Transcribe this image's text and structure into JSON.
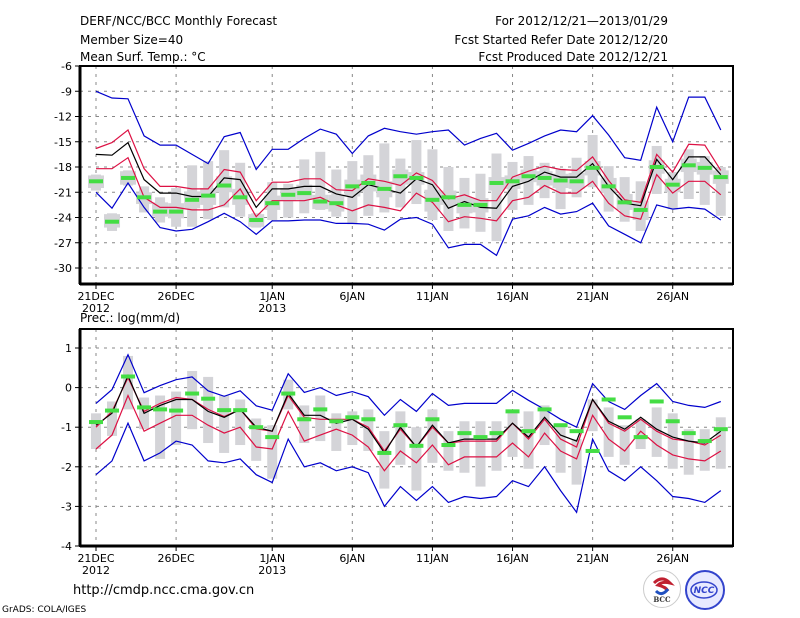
{
  "header": {
    "title": "DERF/NCC/BCC Monthly Forecast",
    "member_size": "Member Size=40",
    "variable": "Mean Surf. Temp.: °C",
    "period": "For 2012/12/21—2013/01/29",
    "started": "Fcst Started Refer Date 2012/12/20",
    "produced": "Fcst Produced Date 2012/12/21"
  },
  "footer": {
    "url": "http://cmdp.ncc.cma.gov.cn",
    "credit": "GrADS: COLA/IGES",
    "logo_left": "BCC",
    "logo_right": "NCC"
  },
  "colors": {
    "max_min": "#0000cc",
    "spread": "#dd1144",
    "mean": "#000000",
    "marker": "#44dd44",
    "bar": "#d4d4d8",
    "grid": "#888888"
  },
  "chart_data": [
    {
      "type": "line",
      "title": "Mean Surf. Temp.: °C",
      "ylabel": "°C",
      "ylim": [
        -32,
        -6
      ],
      "yticks": [
        -6,
        -9,
        -12,
        -15,
        -18,
        -21,
        -24,
        -27,
        -30
      ],
      "ytick_labels": [
        "-6",
        "-9",
        "-12",
        "-15",
        "-18",
        "-21",
        "-24",
        "-27",
        "-30"
      ],
      "xticks": [
        {
          "day": 0,
          "label": "21DEC",
          "sub": "2012"
        },
        {
          "day": 5,
          "label": "26DEC",
          "sub": ""
        },
        {
          "day": 11,
          "label": "1JAN",
          "sub": "2013"
        },
        {
          "day": 16,
          "label": "6JAN",
          "sub": ""
        },
        {
          "day": 21,
          "label": "11JAN",
          "sub": ""
        },
        {
          "day": 26,
          "label": "16JAN",
          "sub": ""
        },
        {
          "day": 31,
          "label": "21JAN",
          "sub": ""
        },
        {
          "day": 36,
          "label": "26JAN",
          "sub": ""
        }
      ],
      "grid": true,
      "series": [
        {
          "name": "max",
          "values": [
            -9.0,
            -9.8,
            -9.9,
            -14.3,
            -15.4,
            -15.4,
            -16.5,
            -17.6,
            -14.4,
            -13.9,
            -18.3,
            -15.9,
            -15.9,
            -14.6,
            -13.5,
            -14.1,
            -16.4,
            -14.3,
            -13.4,
            -13.8,
            -14.1,
            -13.8,
            -13.6,
            -15.4,
            -14.6,
            -14.0,
            -16.0,
            -15.2,
            -14.3,
            -13.6,
            -13.8,
            -11.9,
            -14.2,
            -16.9,
            -17.2,
            -10.9,
            -15.0,
            -9.7,
            -9.7,
            -13.6
          ]
        },
        {
          "name": "upper",
          "values": [
            -15.8,
            -15.1,
            -13.6,
            -18.2,
            -20.3,
            -20.3,
            -20.6,
            -20.6,
            -18.3,
            -18.6,
            -22.0,
            -19.8,
            -19.8,
            -19.4,
            -19.4,
            -20.7,
            -20.8,
            -19.4,
            -19.7,
            -20.2,
            -18.7,
            -19.6,
            -21.8,
            -21.3,
            -22.0,
            -22.0,
            -19.2,
            -18.5,
            -17.9,
            -18.3,
            -18.4,
            -16.8,
            -19.6,
            -21.9,
            -22.2,
            -16.5,
            -18.6,
            -15.3,
            -15.4,
            -18.4
          ]
        },
        {
          "name": "mean",
          "values": [
            -16.5,
            -16.6,
            -15.1,
            -19.5,
            -21.1,
            -21.1,
            -21.5,
            -21.5,
            -19.3,
            -19.5,
            -22.8,
            -20.6,
            -20.6,
            -20.3,
            -20.3,
            -21.2,
            -21.6,
            -20.1,
            -20.6,
            -21.1,
            -19.4,
            -20.1,
            -22.9,
            -22.1,
            -22.8,
            -22.9,
            -20.3,
            -19.7,
            -18.6,
            -19.2,
            -19.2,
            -17.6,
            -20.3,
            -22.3,
            -22.6,
            -17.1,
            -19.5,
            -16.8,
            -16.8,
            -18.9
          ]
        },
        {
          "name": "lower",
          "values": [
            -18.2,
            -18.2,
            -16.9,
            -21.6,
            -22.8,
            -22.8,
            -23.1,
            -23.1,
            -22.5,
            -20.6,
            -23.9,
            -22.0,
            -22.0,
            -22.0,
            -21.6,
            -22.5,
            -23.2,
            -22.5,
            -22.8,
            -23.2,
            -21.1,
            -22.2,
            -24.5,
            -23.9,
            -24.1,
            -24.4,
            -22.0,
            -21.6,
            -20.2,
            -21.1,
            -21.1,
            -19.7,
            -22.3,
            -23.8,
            -24.2,
            -18.9,
            -21.1,
            -19.7,
            -19.7,
            -21.3
          ]
        },
        {
          "name": "min",
          "values": [
            -21.0,
            -22.9,
            -19.9,
            -22.8,
            -25.2,
            -25.6,
            -25.4,
            -24.5,
            -23.5,
            -24.5,
            -26.0,
            -24.4,
            -24.4,
            -24.3,
            -24.3,
            -24.7,
            -24.7,
            -24.8,
            -25.5,
            -24.2,
            -24.0,
            -24.8,
            -27.6,
            -27.2,
            -27.2,
            -28.5,
            -24.2,
            -23.8,
            -22.8,
            -23.6,
            -23.3,
            -22.3,
            -25.0,
            -26.0,
            -27.0,
            -22.5,
            -23.0,
            -22.8,
            -23.0,
            -24.3
          ]
        },
        {
          "name": "marker",
          "values": [
            -19.7,
            -24.5,
            -19.3,
            -21.6,
            -23.3,
            -23.3,
            -21.9,
            -21.4,
            -20.2,
            -21.6,
            -24.3,
            -22.3,
            -21.3,
            -21.1,
            -22.1,
            -22.3,
            -20.3,
            -19.9,
            -20.6,
            -19.1,
            -19.3,
            -21.9,
            -21.6,
            -22.5,
            -22.5,
            -19.9,
            -19.7,
            -19.1,
            -19.3,
            -19.6,
            -19.7,
            -18.1,
            -20.3,
            -22.2,
            -23.1,
            -18.0,
            -20.1,
            -17.8,
            -18.1,
            -19.2
          ]
        },
        {
          "name": "bar_top",
          "values": [
            -18.9,
            -23.5,
            -18.4,
            -20.3,
            -21.6,
            -20.5,
            -17.8,
            -17.3,
            -16.0,
            -17.5,
            -23.5,
            -19.8,
            -20.0,
            -17.1,
            -16.2,
            -18.3,
            -17.3,
            -16.6,
            -15.2,
            -17.0,
            -14.8,
            -15.9,
            -18.0,
            -19.3,
            -18.8,
            -16.4,
            -17.4,
            -16.7,
            -17.5,
            -18.2,
            -16.9,
            -14.2,
            -17.9,
            -19.2,
            -19.7,
            -15.5,
            -18.6,
            -15.9,
            -16.7,
            -18.0
          ]
        },
        {
          "name": "bar_bottom",
          "values": [
            -20.8,
            -25.6,
            -20.2,
            -23.4,
            -24.6,
            -25.1,
            -25.1,
            -24.2,
            -22.8,
            -23.9,
            -25.2,
            -24.3,
            -24.0,
            -23.5,
            -23.1,
            -23.9,
            -24.8,
            -23.8,
            -23.4,
            -22.8,
            -22.4,
            -24.3,
            -25.6,
            -25.3,
            -25.7,
            -26.8,
            -23.1,
            -22.5,
            -21.7,
            -23.0,
            -21.6,
            -20.4,
            -23.3,
            -24.5,
            -25.6,
            -21.2,
            -23.0,
            -21.8,
            -22.5,
            -23.8
          ]
        },
        {
          "name": "bar_inner_top",
          "values": [
            -19.0,
            -23.6,
            -18.5,
            -21.0,
            -22.2,
            -22.3,
            -20.9,
            -20.5,
            -19.1,
            -20.6,
            -23.6,
            -21.4,
            -20.5,
            -20.1,
            -21.3,
            -21.3,
            -19.5,
            -18.9,
            -19.7,
            -18.3,
            -18.6,
            -20.7,
            -20.8,
            -21.6,
            -21.7,
            -19.2,
            -19.0,
            -18.3,
            -18.5,
            -18.8,
            -18.7,
            -17.3,
            -19.3,
            -21.2,
            -22.0,
            -17.2,
            -19.4,
            -17.0,
            -17.4,
            -18.4
          ]
        },
        {
          "name": "bar_inner_bottom",
          "values": [
            -20.5,
            -25.2,
            -20.1,
            -22.4,
            -23.9,
            -24.1,
            -22.9,
            -22.5,
            -21.0,
            -22.5,
            -25.1,
            -23.1,
            -22.0,
            -21.9,
            -23.0,
            -23.3,
            -21.5,
            -20.9,
            -21.6,
            -20.1,
            -20.1,
            -23.3,
            -22.5,
            -23.5,
            -23.4,
            -20.8,
            -20.6,
            -19.8,
            -20.2,
            -20.5,
            -20.6,
            -19.0,
            -21.1,
            -23.1,
            -24.3,
            -18.8,
            -21.0,
            -18.6,
            -18.9,
            -20.0
          ]
        }
      ]
    },
    {
      "type": "line",
      "title": "Prec.: log(mm/d)",
      "ylabel": "log(mm/d)",
      "ylim": [
        -4,
        1.45
      ],
      "yticks": [
        1,
        0,
        -1,
        -2,
        -3,
        -4
      ],
      "ytick_labels": [
        "1",
        "0",
        "-1",
        "-2",
        "-3",
        "-4"
      ],
      "xticks": [
        {
          "day": 0,
          "label": "21DEC",
          "sub": "2012"
        },
        {
          "day": 5,
          "label": "26DEC",
          "sub": ""
        },
        {
          "day": 11,
          "label": "1JAN",
          "sub": "2013"
        },
        {
          "day": 16,
          "label": "6JAN",
          "sub": ""
        },
        {
          "day": 21,
          "label": "11JAN",
          "sub": ""
        },
        {
          "day": 26,
          "label": "16JAN",
          "sub": ""
        },
        {
          "day": 31,
          "label": "21JAN",
          "sub": ""
        },
        {
          "day": 36,
          "label": "26JAN",
          "sub": ""
        }
      ],
      "grid": true,
      "series": [
        {
          "name": "max",
          "values": [
            -0.4,
            -0.05,
            0.83,
            -0.13,
            0.05,
            0.2,
            0.27,
            -0.08,
            -0.22,
            -0.08,
            -0.46,
            -0.57,
            0.35,
            -0.12,
            0.0,
            -0.2,
            -0.1,
            -0.23,
            -0.7,
            -0.3,
            -0.6,
            -0.15,
            -0.45,
            -0.4,
            -0.4,
            -0.4,
            -0.07,
            -0.32,
            -0.55,
            -0.8,
            -1.0,
            0.1,
            -0.35,
            -0.55,
            -0.2,
            0.1,
            -0.35,
            -0.45,
            -0.5,
            -0.35
          ]
        },
        {
          "name": "upper",
          "values": [
            -1.0,
            -0.6,
            0.25,
            -0.6,
            -0.4,
            -0.25,
            -0.3,
            -0.55,
            -0.73,
            -0.55,
            -1.04,
            -1.1,
            -0.2,
            -0.75,
            -0.8,
            -0.8,
            -0.8,
            -1.0,
            -1.6,
            -1.05,
            -1.5,
            -1.0,
            -1.4,
            -1.35,
            -1.35,
            -1.35,
            -0.9,
            -1.3,
            -0.8,
            -1.3,
            -1.5,
            -0.3,
            -0.9,
            -1.1,
            -0.8,
            -1.1,
            -1.3,
            -1.35,
            -1.45,
            -1.2
          ]
        },
        {
          "name": "mean",
          "values": [
            -0.95,
            -0.65,
            0.3,
            -0.65,
            -0.45,
            -0.3,
            -0.3,
            -0.6,
            -0.75,
            -0.55,
            -1.0,
            -1.1,
            -0.15,
            -0.7,
            -0.7,
            -0.9,
            -0.8,
            -1.05,
            -1.65,
            -1.0,
            -1.5,
            -0.95,
            -1.4,
            -1.3,
            -1.3,
            -1.3,
            -0.9,
            -1.25,
            -0.75,
            -1.2,
            -1.35,
            -0.3,
            -0.85,
            -1.05,
            -0.75,
            -1.05,
            -1.25,
            -1.35,
            -1.4,
            -1.1
          ]
        },
        {
          "name": "lower",
          "values": [
            -1.55,
            -1.2,
            -0.2,
            -1.1,
            -0.9,
            -0.7,
            -0.7,
            -0.95,
            -1.15,
            -1.0,
            -1.5,
            -1.55,
            -0.6,
            -1.35,
            -1.2,
            -1.05,
            -1.2,
            -1.5,
            -2.1,
            -1.6,
            -1.9,
            -1.45,
            -1.95,
            -1.75,
            -1.75,
            -1.75,
            -1.4,
            -1.75,
            -1.15,
            -1.6,
            -1.8,
            -0.7,
            -1.3,
            -1.6,
            -1.1,
            -1.45,
            -1.7,
            -1.8,
            -1.85,
            -1.6
          ]
        },
        {
          "name": "min",
          "values": [
            -2.2,
            -1.85,
            -0.9,
            -1.85,
            -1.65,
            -1.35,
            -1.45,
            -1.85,
            -1.9,
            -1.8,
            -2.2,
            -2.4,
            -1.3,
            -2.0,
            -1.9,
            -2.1,
            -2.0,
            -2.15,
            -3.0,
            -2.5,
            -2.85,
            -2.5,
            -2.9,
            -2.75,
            -2.8,
            -2.75,
            -2.35,
            -2.5,
            -2.0,
            -2.6,
            -3.15,
            -1.3,
            -2.1,
            -2.35,
            -2.0,
            -2.35,
            -2.75,
            -2.8,
            -2.9,
            -2.6
          ]
        },
        {
          "name": "marker",
          "values": [
            -0.87,
            -0.58,
            0.28,
            -0.5,
            -0.55,
            -0.58,
            -0.15,
            -0.28,
            -0.57,
            -0.57,
            -1.0,
            -1.25,
            -0.15,
            -0.8,
            -0.55,
            -0.85,
            -0.75,
            -0.8,
            -1.65,
            -0.95,
            -1.47,
            -0.8,
            -1.45,
            -1.15,
            -1.25,
            -1.15,
            -0.6,
            -1.1,
            -0.55,
            -0.95,
            -1.1,
            -1.6,
            -0.3,
            -0.75,
            -1.25,
            -0.35,
            -0.85,
            -1.15,
            -1.35,
            -1.05
          ]
        },
        {
          "name": "bar_top",
          "values": [
            -0.65,
            -0.35,
            0.8,
            -0.25,
            -0.2,
            -0.1,
            0.42,
            0.27,
            -0.2,
            -0.3,
            -0.78,
            -0.95,
            0.2,
            -0.45,
            -0.2,
            -0.65,
            -0.6,
            -0.55,
            -1.1,
            -0.6,
            -1.0,
            -0.55,
            -1.1,
            -0.85,
            -0.85,
            -0.85,
            -0.55,
            -0.6,
            -0.45,
            -0.95,
            -1.3,
            -0.3,
            -0.5,
            -0.95,
            -0.8,
            -0.5,
            -0.65,
            -1.05,
            -1.05,
            -0.75
          ]
        },
        {
          "name": "bar_bottom",
          "values": [
            -1.55,
            -1.22,
            -0.55,
            -1.05,
            -1.8,
            -1.45,
            -1.05,
            -1.4,
            -1.65,
            -1.45,
            -1.85,
            -2.3,
            -0.55,
            -1.4,
            -1.35,
            -1.6,
            -1.45,
            -1.6,
            -2.55,
            -1.95,
            -2.6,
            -1.9,
            -2.1,
            -2.15,
            -2.5,
            -2.1,
            -1.75,
            -2.05,
            -1.45,
            -2.15,
            -2.45,
            -1.1,
            -1.75,
            -1.95,
            -1.55,
            -1.75,
            -2.05,
            -2.2,
            -2.1,
            -2.05
          ]
        }
      ]
    }
  ]
}
